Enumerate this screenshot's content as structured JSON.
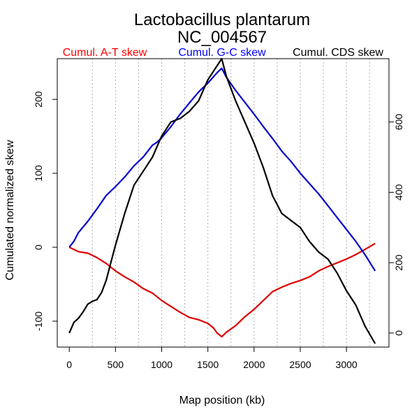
{
  "chart_data": {
    "type": "line",
    "title": "Lactobacillus plantarum",
    "subtitle": "NC_004567",
    "xlabel": "Map position (kb)",
    "ylabel": "Cumulated normalized skew",
    "xlim": [
      -130,
      3460
    ],
    "ylim": [
      -135,
      255
    ],
    "ylim_right": [
      -40,
      780
    ],
    "x_ticks": [
      "0",
      "500",
      "1000",
      "1500",
      "2000",
      "2500",
      "3000"
    ],
    "y_ticks": [
      "-100",
      "0",
      "100",
      "200"
    ],
    "y_ticks_right": [
      "0",
      "200",
      "400",
      "600"
    ],
    "x_gridlines": [
      250,
      500,
      750,
      1000,
      1250,
      1500,
      1750,
      2000,
      2250,
      2500,
      2750,
      3000,
      3250
    ],
    "legend": [
      {
        "label": "Cumul. A-T skew",
        "color": "#ff0000"
      },
      {
        "label": "Cumul. G-C skew",
        "color": "#0000ff"
      },
      {
        "label": "Cumul. CDS skew",
        "color": "#000000"
      }
    ],
    "series": [
      {
        "name": "Cumul. A-T skew",
        "axis": "left",
        "color": "#dd0000",
        "x": [
          0,
          50,
          100,
          200,
          300,
          400,
          500,
          600,
          700,
          800,
          900,
          1000,
          1100,
          1200,
          1300,
          1400,
          1500,
          1560,
          1600,
          1650,
          1700,
          1800,
          1900,
          2000,
          2100,
          2200,
          2300,
          2400,
          2500,
          2600,
          2700,
          2800,
          2900,
          3000,
          3100,
          3200,
          3310
        ],
        "y": [
          0,
          -3,
          -6,
          -8,
          -14,
          -22,
          -32,
          -40,
          -47,
          -56,
          -62,
          -72,
          -80,
          -88,
          -95,
          -98,
          -103,
          -109,
          -116,
          -121,
          -115,
          -106,
          -94,
          -84,
          -72,
          -60,
          -54,
          -49,
          -45,
          -40,
          -32,
          -26,
          -21,
          -16,
          -10,
          -3,
          5
        ]
      },
      {
        "name": "Cumul. G-C skew",
        "axis": "left",
        "color": "#0000cc",
        "x": [
          0,
          50,
          100,
          200,
          300,
          400,
          500,
          600,
          700,
          800,
          900,
          950,
          1000,
          1100,
          1200,
          1300,
          1400,
          1500,
          1600,
          1650,
          1700,
          1800,
          1900,
          2000,
          2100,
          2200,
          2300,
          2400,
          2500,
          2600,
          2700,
          2800,
          2900,
          3000,
          3100,
          3200,
          3310
        ],
        "y": [
          0,
          8,
          20,
          35,
          52,
          70,
          82,
          95,
          110,
          122,
          138,
          142,
          148,
          163,
          180,
          195,
          210,
          222,
          236,
          242,
          230,
          212,
          196,
          180,
          163,
          147,
          130,
          116,
          100,
          86,
          72,
          56,
          40,
          24,
          8,
          -10,
          -32
        ]
      },
      {
        "name": "Cumul. CDS skew",
        "axis": "right",
        "color": "#000000",
        "x": [
          0,
          50,
          100,
          150,
          200,
          250,
          300,
          350,
          400,
          450,
          500,
          600,
          700,
          800,
          900,
          1000,
          1100,
          1200,
          1300,
          1400,
          1500,
          1600,
          1650,
          1700,
          1800,
          1900,
          2000,
          2100,
          2200,
          2300,
          2400,
          2500,
          2600,
          2700,
          2800,
          2900,
          3000,
          3100,
          3200,
          3310
        ],
        "y": [
          0,
          30,
          42,
          60,
          82,
          90,
          95,
          115,
          150,
          200,
          250,
          340,
          420,
          460,
          500,
          560,
          600,
          610,
          630,
          660,
          720,
          760,
          780,
          730,
          660,
          600,
          540,
          470,
          390,
          340,
          320,
          300,
          260,
          230,
          210,
          170,
          120,
          80,
          20,
          -30
        ]
      }
    ]
  }
}
